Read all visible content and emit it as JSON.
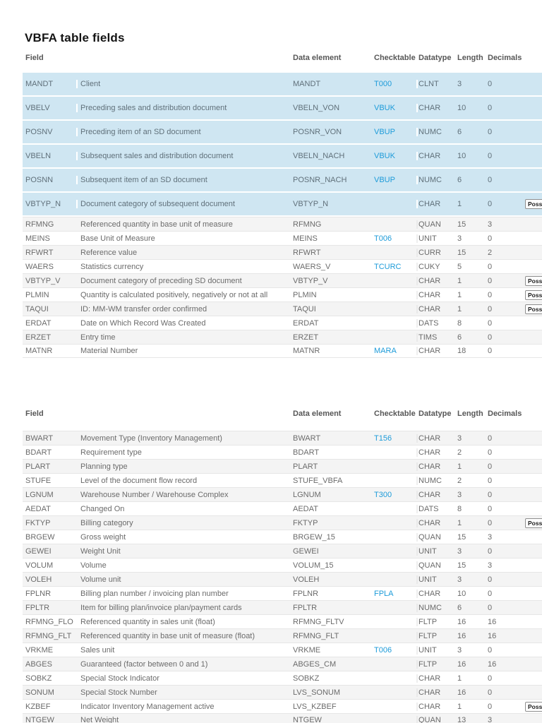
{
  "title": "VBFA table fields",
  "columns": [
    "Field",
    "Data element",
    "Checktable",
    "Datatype",
    "Length",
    "Decimals"
  ],
  "poss_button_label": "Poss",
  "colors": {
    "highlight_row": "#cfe6f2",
    "link": "#1d9bd9",
    "stripe": "#f4f4f4"
  },
  "tables": [
    {
      "rows": [
        {
          "field": "MANDT",
          "description": "Client",
          "data_element": "MANDT",
          "checktable": "T000",
          "datatype": "CLNT",
          "length": "3",
          "decimals": "0",
          "key": true,
          "possible_entries": false
        },
        {
          "field": "VBELV",
          "description": "Preceding sales and distribution document",
          "data_element": "VBELN_VON",
          "checktable": "VBUK",
          "datatype": "CHAR",
          "length": "10",
          "decimals": "0",
          "key": true,
          "possible_entries": false
        },
        {
          "field": "POSNV",
          "description": "Preceding item of an SD document",
          "data_element": "POSNR_VON",
          "checktable": "VBUP",
          "datatype": "NUMC",
          "length": "6",
          "decimals": "0",
          "key": true,
          "possible_entries": false
        },
        {
          "field": "VBELN",
          "description": "Subsequent sales and distribution document",
          "data_element": "VBELN_NACH",
          "checktable": "VBUK",
          "datatype": "CHAR",
          "length": "10",
          "decimals": "0",
          "key": true,
          "possible_entries": false
        },
        {
          "field": "POSNN",
          "description": "Subsequent item of an SD document",
          "data_element": "POSNR_NACH",
          "checktable": "VBUP",
          "datatype": "NUMC",
          "length": "6",
          "decimals": "0",
          "key": true,
          "possible_entries": false
        },
        {
          "field": "VBTYP_N",
          "description": "Document category of subsequent document",
          "data_element": "VBTYP_N",
          "checktable": "",
          "datatype": "CHAR",
          "length": "1",
          "decimals": "0",
          "key": true,
          "possible_entries": true
        },
        {
          "field": "RFMNG",
          "description": "Referenced quantity in base unit of measure",
          "data_element": "RFMNG",
          "checktable": "",
          "datatype": "QUAN",
          "length": "15",
          "decimals": "3",
          "key": false,
          "possible_entries": false
        },
        {
          "field": "MEINS",
          "description": "Base Unit of Measure",
          "data_element": "MEINS",
          "checktable": "T006",
          "datatype": "UNIT",
          "length": "3",
          "decimals": "0",
          "key": false,
          "possible_entries": false
        },
        {
          "field": "RFWRT",
          "description": "Reference value",
          "data_element": "RFWRT",
          "checktable": "",
          "datatype": "CURR",
          "length": "15",
          "decimals": "2",
          "key": false,
          "possible_entries": false
        },
        {
          "field": "WAERS",
          "description": "Statistics currency",
          "data_element": "WAERS_V",
          "checktable": "TCURC",
          "datatype": "CUKY",
          "length": "5",
          "decimals": "0",
          "key": false,
          "possible_entries": false
        },
        {
          "field": "VBTYP_V",
          "description": "Document category of preceding SD document",
          "data_element": "VBTYP_V",
          "checktable": "",
          "datatype": "CHAR",
          "length": "1",
          "decimals": "0",
          "key": false,
          "possible_entries": true
        },
        {
          "field": "PLMIN",
          "description": "Quantity is calculated positively, negatively or not at all",
          "data_element": "PLMIN",
          "checktable": "",
          "datatype": "CHAR",
          "length": "1",
          "decimals": "0",
          "key": false,
          "possible_entries": true
        },
        {
          "field": "TAQUI",
          "description": "ID: MM-WM transfer order confirmed",
          "data_element": "TAQUI",
          "checktable": "",
          "datatype": "CHAR",
          "length": "1",
          "decimals": "0",
          "key": false,
          "possible_entries": true
        },
        {
          "field": "ERDAT",
          "description": "Date on Which Record Was Created",
          "data_element": "ERDAT",
          "checktable": "",
          "datatype": "DATS",
          "length": "8",
          "decimals": "0",
          "key": false,
          "possible_entries": false
        },
        {
          "field": "ERZET",
          "description": "Entry time",
          "data_element": "ERZET",
          "checktable": "",
          "datatype": "TIMS",
          "length": "6",
          "decimals": "0",
          "key": false,
          "possible_entries": false
        },
        {
          "field": "MATNR",
          "description": "Material Number",
          "data_element": "MATNR",
          "checktable": "MARA",
          "datatype": "CHAR",
          "length": "18",
          "decimals": "0",
          "key": false,
          "possible_entries": false
        }
      ]
    },
    {
      "rows": [
        {
          "field": "BWART",
          "description": "Movement Type (Inventory Management)",
          "data_element": "BWART",
          "checktable": "T156",
          "datatype": "CHAR",
          "length": "3",
          "decimals": "0",
          "key": false,
          "possible_entries": false
        },
        {
          "field": "BDART",
          "description": "Requirement type",
          "data_element": "BDART",
          "checktable": "",
          "datatype": "CHAR",
          "length": "2",
          "decimals": "0",
          "key": false,
          "possible_entries": false
        },
        {
          "field": "PLART",
          "description": "Planning type",
          "data_element": "PLART",
          "checktable": "",
          "datatype": "CHAR",
          "length": "1",
          "decimals": "0",
          "key": false,
          "possible_entries": false
        },
        {
          "field": "STUFE",
          "description": "Level of the document flow record",
          "data_element": "STUFE_VBFA",
          "checktable": "",
          "datatype": "NUMC",
          "length": "2",
          "decimals": "0",
          "key": false,
          "possible_entries": false
        },
        {
          "field": "LGNUM",
          "description": "Warehouse Number / Warehouse Complex",
          "data_element": "LGNUM",
          "checktable": "T300",
          "datatype": "CHAR",
          "length": "3",
          "decimals": "0",
          "key": false,
          "possible_entries": false
        },
        {
          "field": "AEDAT",
          "description": "Changed On",
          "data_element": "AEDAT",
          "checktable": "",
          "datatype": "DATS",
          "length": "8",
          "decimals": "0",
          "key": false,
          "possible_entries": false
        },
        {
          "field": "FKTYP",
          "description": "Billing category",
          "data_element": "FKTYP",
          "checktable": "",
          "datatype": "CHAR",
          "length": "1",
          "decimals": "0",
          "key": false,
          "possible_entries": true
        },
        {
          "field": "BRGEW",
          "description": "Gross weight",
          "data_element": "BRGEW_15",
          "checktable": "",
          "datatype": "QUAN",
          "length": "15",
          "decimals": "3",
          "key": false,
          "possible_entries": false
        },
        {
          "field": "GEWEI",
          "description": "Weight Unit",
          "data_element": "GEWEI",
          "checktable": "",
          "datatype": "UNIT",
          "length": "3",
          "decimals": "0",
          "key": false,
          "possible_entries": false
        },
        {
          "field": "VOLUM",
          "description": "Volume",
          "data_element": "VOLUM_15",
          "checktable": "",
          "datatype": "QUAN",
          "length": "15",
          "decimals": "3",
          "key": false,
          "possible_entries": false
        },
        {
          "field": "VOLEH",
          "description": "Volume unit",
          "data_element": "VOLEH",
          "checktable": "",
          "datatype": "UNIT",
          "length": "3",
          "decimals": "0",
          "key": false,
          "possible_entries": false
        },
        {
          "field": "FPLNR",
          "description": "Billing plan number / invoicing plan number",
          "data_element": "FPLNR",
          "checktable": "FPLA",
          "datatype": "CHAR",
          "length": "10",
          "decimals": "0",
          "key": false,
          "possible_entries": false
        },
        {
          "field": "FPLTR",
          "description": "Item for billing plan/invoice plan/payment cards",
          "data_element": "FPLTR",
          "checktable": "",
          "datatype": "NUMC",
          "length": "6",
          "decimals": "0",
          "key": false,
          "possible_entries": false
        },
        {
          "field": "RFMNG_FLO",
          "description": "Referenced quantity in sales unit (float)",
          "data_element": "RFMNG_FLTV",
          "checktable": "",
          "datatype": "FLTP",
          "length": "16",
          "decimals": "16",
          "key": false,
          "possible_entries": false
        },
        {
          "field": "RFMNG_FLT",
          "description": "Referenced quantity in base unit of measure (float)",
          "data_element": "RFMNG_FLT",
          "checktable": "",
          "datatype": "FLTP",
          "length": "16",
          "decimals": "16",
          "key": false,
          "possible_entries": false
        },
        {
          "field": "VRKME",
          "description": "Sales unit",
          "data_element": "VRKME",
          "checktable": "T006",
          "datatype": "UNIT",
          "length": "3",
          "decimals": "0",
          "key": false,
          "possible_entries": false
        },
        {
          "field": "ABGES",
          "description": "Guaranteed (factor between 0 and 1)",
          "data_element": "ABGES_CM",
          "checktable": "",
          "datatype": "FLTP",
          "length": "16",
          "decimals": "16",
          "key": false,
          "possible_entries": false
        },
        {
          "field": "SOBKZ",
          "description": "Special Stock Indicator",
          "data_element": "SOBKZ",
          "checktable": "",
          "datatype": "CHAR",
          "length": "1",
          "decimals": "0",
          "key": false,
          "possible_entries": false
        },
        {
          "field": "SONUM",
          "description": "Special Stock Number",
          "data_element": "LVS_SONUM",
          "checktable": "",
          "datatype": "CHAR",
          "length": "16",
          "decimals": "0",
          "key": false,
          "possible_entries": false
        },
        {
          "field": "KZBEF",
          "description": "Indicator Inventory Management active",
          "data_element": "LVS_KZBEF",
          "checktable": "",
          "datatype": "CHAR",
          "length": "1",
          "decimals": "0",
          "key": false,
          "possible_entries": true
        },
        {
          "field": "NTGEW",
          "description": "Net Weight",
          "data_element": "NTGEW",
          "checktable": "",
          "datatype": "QUAN",
          "length": "13",
          "decimals": "3",
          "key": false,
          "possible_entries": false
        }
      ]
    }
  ]
}
